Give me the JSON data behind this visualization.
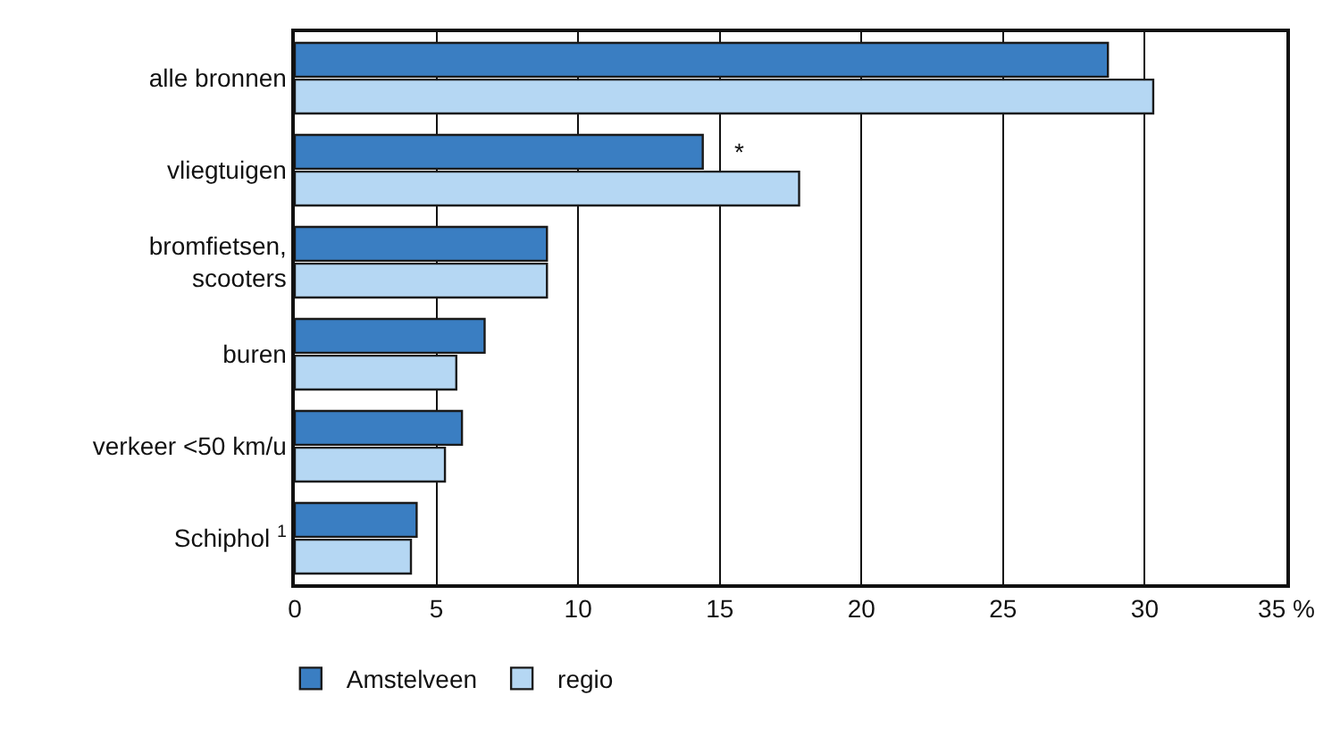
{
  "chart_data": {
    "type": "bar",
    "orientation": "horizontal",
    "categories": [
      "alle bronnen",
      "vliegtuigen",
      "bromfietsen,\nscooters",
      "buren",
      "verkeer <50 km/u",
      "Schiphol $^{1}$"
    ],
    "series": [
      {
        "name": "Amstelveen",
        "color": "#3a7ec2",
        "values": [
          28.7,
          14.4,
          8.9,
          6.7,
          5.9,
          4.3
        ]
      },
      {
        "name": "regio",
        "color": "#b5d7f3",
        "values": [
          30.3,
          17.8,
          8.9,
          5.7,
          5.3,
          4.1
        ]
      }
    ],
    "xlim": [
      0,
      35
    ],
    "xticks": [
      0,
      5,
      10,
      15,
      20,
      25,
      30,
      {
        "value": 35,
        "label": "35 %"
      }
    ],
    "grid": "x",
    "legend": "bottom left",
    "annotations": [
      {
        "text": "*",
        "x": 15.4,
        "y": "vliegtuigen"
      }
    ]
  }
}
